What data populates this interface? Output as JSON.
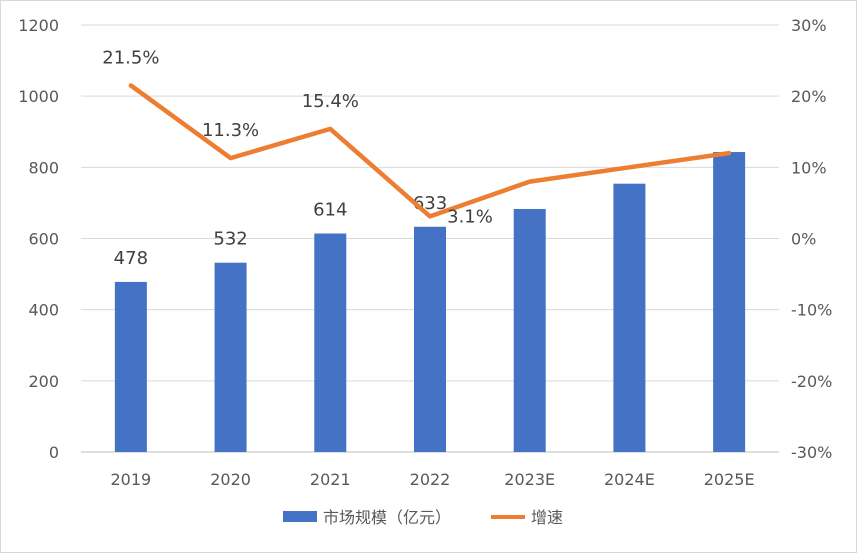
{
  "chart_data": {
    "type": "bar",
    "categories": [
      "2019",
      "2020",
      "2021",
      "2022",
      "2023E",
      "2024E",
      "2025E"
    ],
    "series": [
      {
        "name": "市场规模（亿元）",
        "type": "bar",
        "axis": "left",
        "values": [
          478,
          532,
          614,
          633,
          683,
          754,
          843
        ],
        "data_labels": [
          "478",
          "532",
          "614",
          "633",
          null,
          null,
          null
        ],
        "color": "#4472C4"
      },
      {
        "name": "增速",
        "type": "line",
        "axis": "right",
        "values": [
          21.5,
          11.3,
          15.4,
          3.1,
          8.0,
          10.0,
          12.0
        ],
        "data_labels": [
          "21.5%",
          "11.3%",
          "15.4%",
          "3.1%",
          null,
          null,
          null
        ],
        "color": "#ED7D31"
      }
    ],
    "y_left": {
      "ylim": [
        0,
        1200
      ],
      "ticks": [
        "0",
        "200",
        "400",
        "600",
        "800",
        "1000",
        "1200"
      ]
    },
    "y_right": {
      "ylim": [
        -30,
        30
      ],
      "ticks": [
        "-30%",
        "-20%",
        "-10%",
        "0%",
        "10%",
        "20%",
        "30%"
      ]
    },
    "grid": true,
    "legend": "bottom"
  }
}
